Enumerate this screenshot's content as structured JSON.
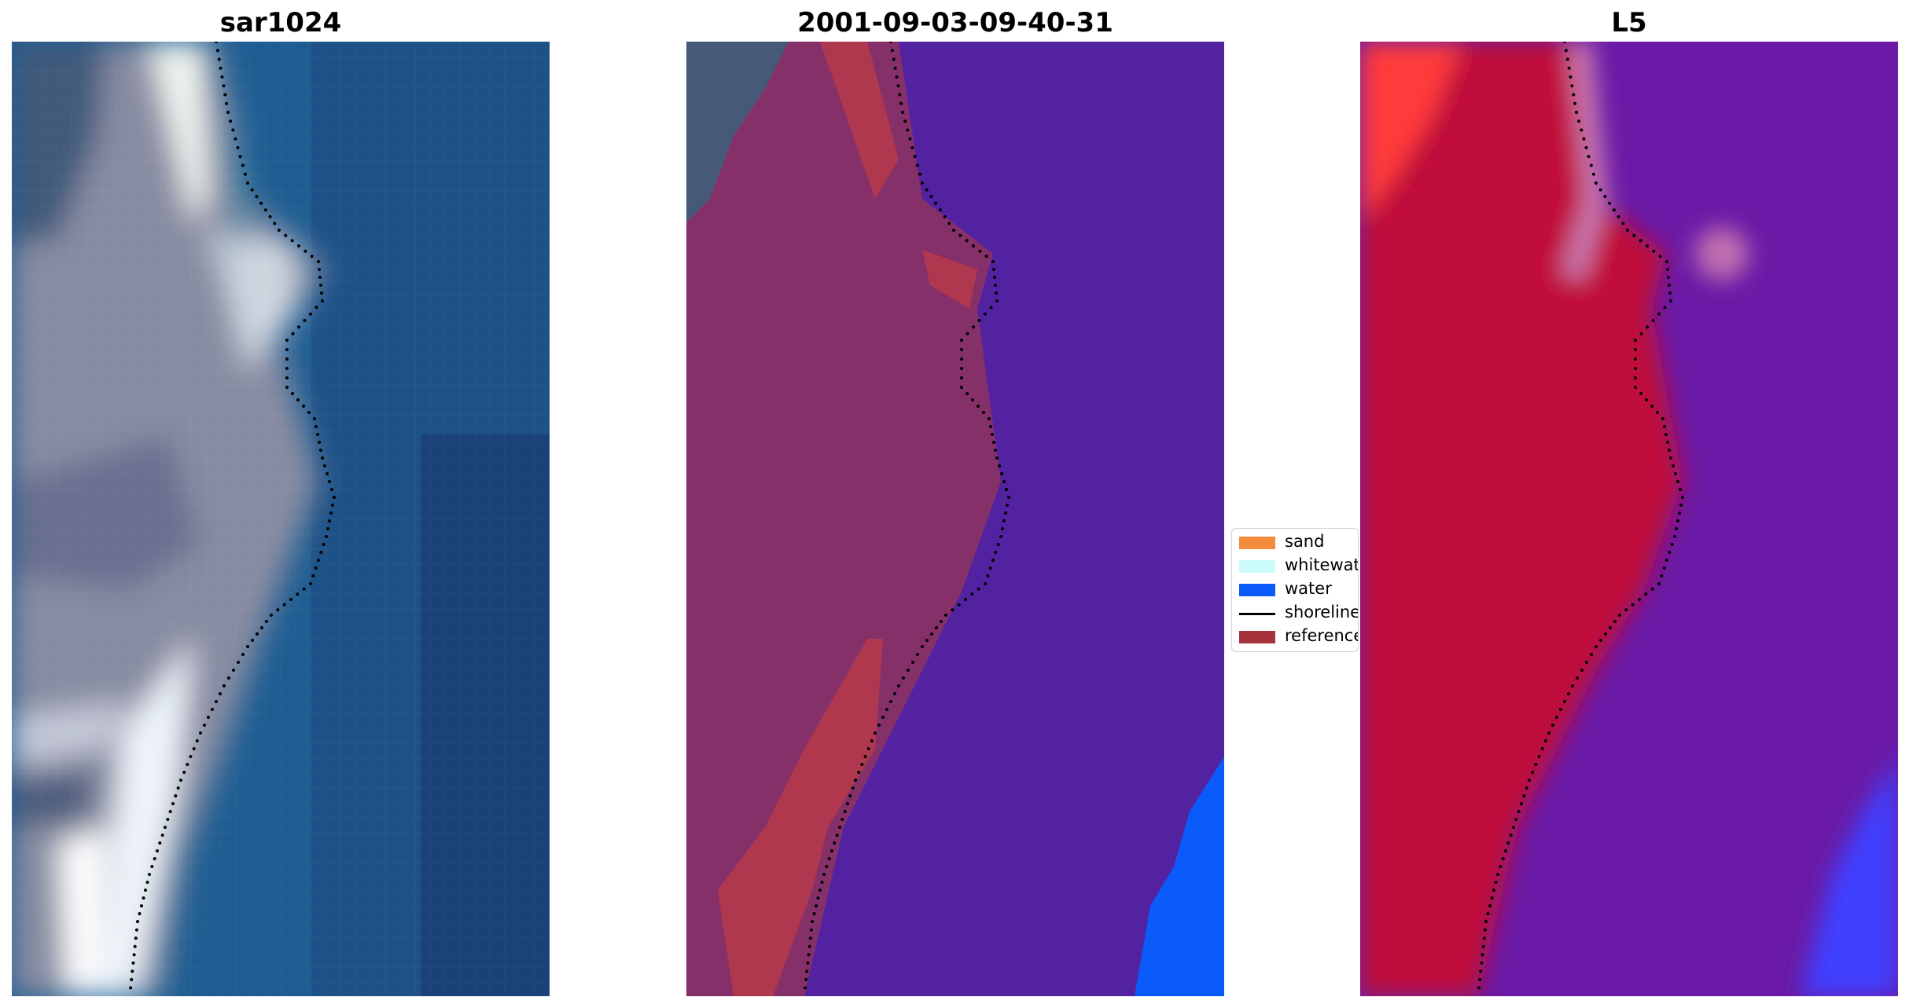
{
  "panels": [
    {
      "title": "sar1024",
      "kind": "rgb"
    },
    {
      "title": "2001-09-03-09-40-31",
      "kind": "classified"
    },
    {
      "title": "L5",
      "kind": "mndwi"
    }
  ],
  "legend": {
    "items": [
      {
        "label": "sand",
        "color": "#f58b3c",
        "type": "patch"
      },
      {
        "label": "whitewater",
        "color": "#cbfbfb",
        "type": "patch"
      },
      {
        "label": "water",
        "color": "#0a5bfa",
        "type": "patch"
      },
      {
        "label": "shoreline",
        "color": "#000000",
        "type": "line"
      },
      {
        "label": "reference",
        "color": "#a6323c",
        "type": "patch"
      }
    ]
  },
  "colors": {
    "ocean_rgb": "#1f5f93",
    "land_rgb": "#8a8ea3",
    "foam_rgb": "#e8f0f0",
    "class_background": "#5322a0",
    "class_land": "#86306a",
    "class_reference": "#b0384e",
    "class_water": "#0a5bfa",
    "index_land": "#c0103a",
    "index_sea": "#6a1aa6",
    "index_high": "#ff3b3b"
  }
}
